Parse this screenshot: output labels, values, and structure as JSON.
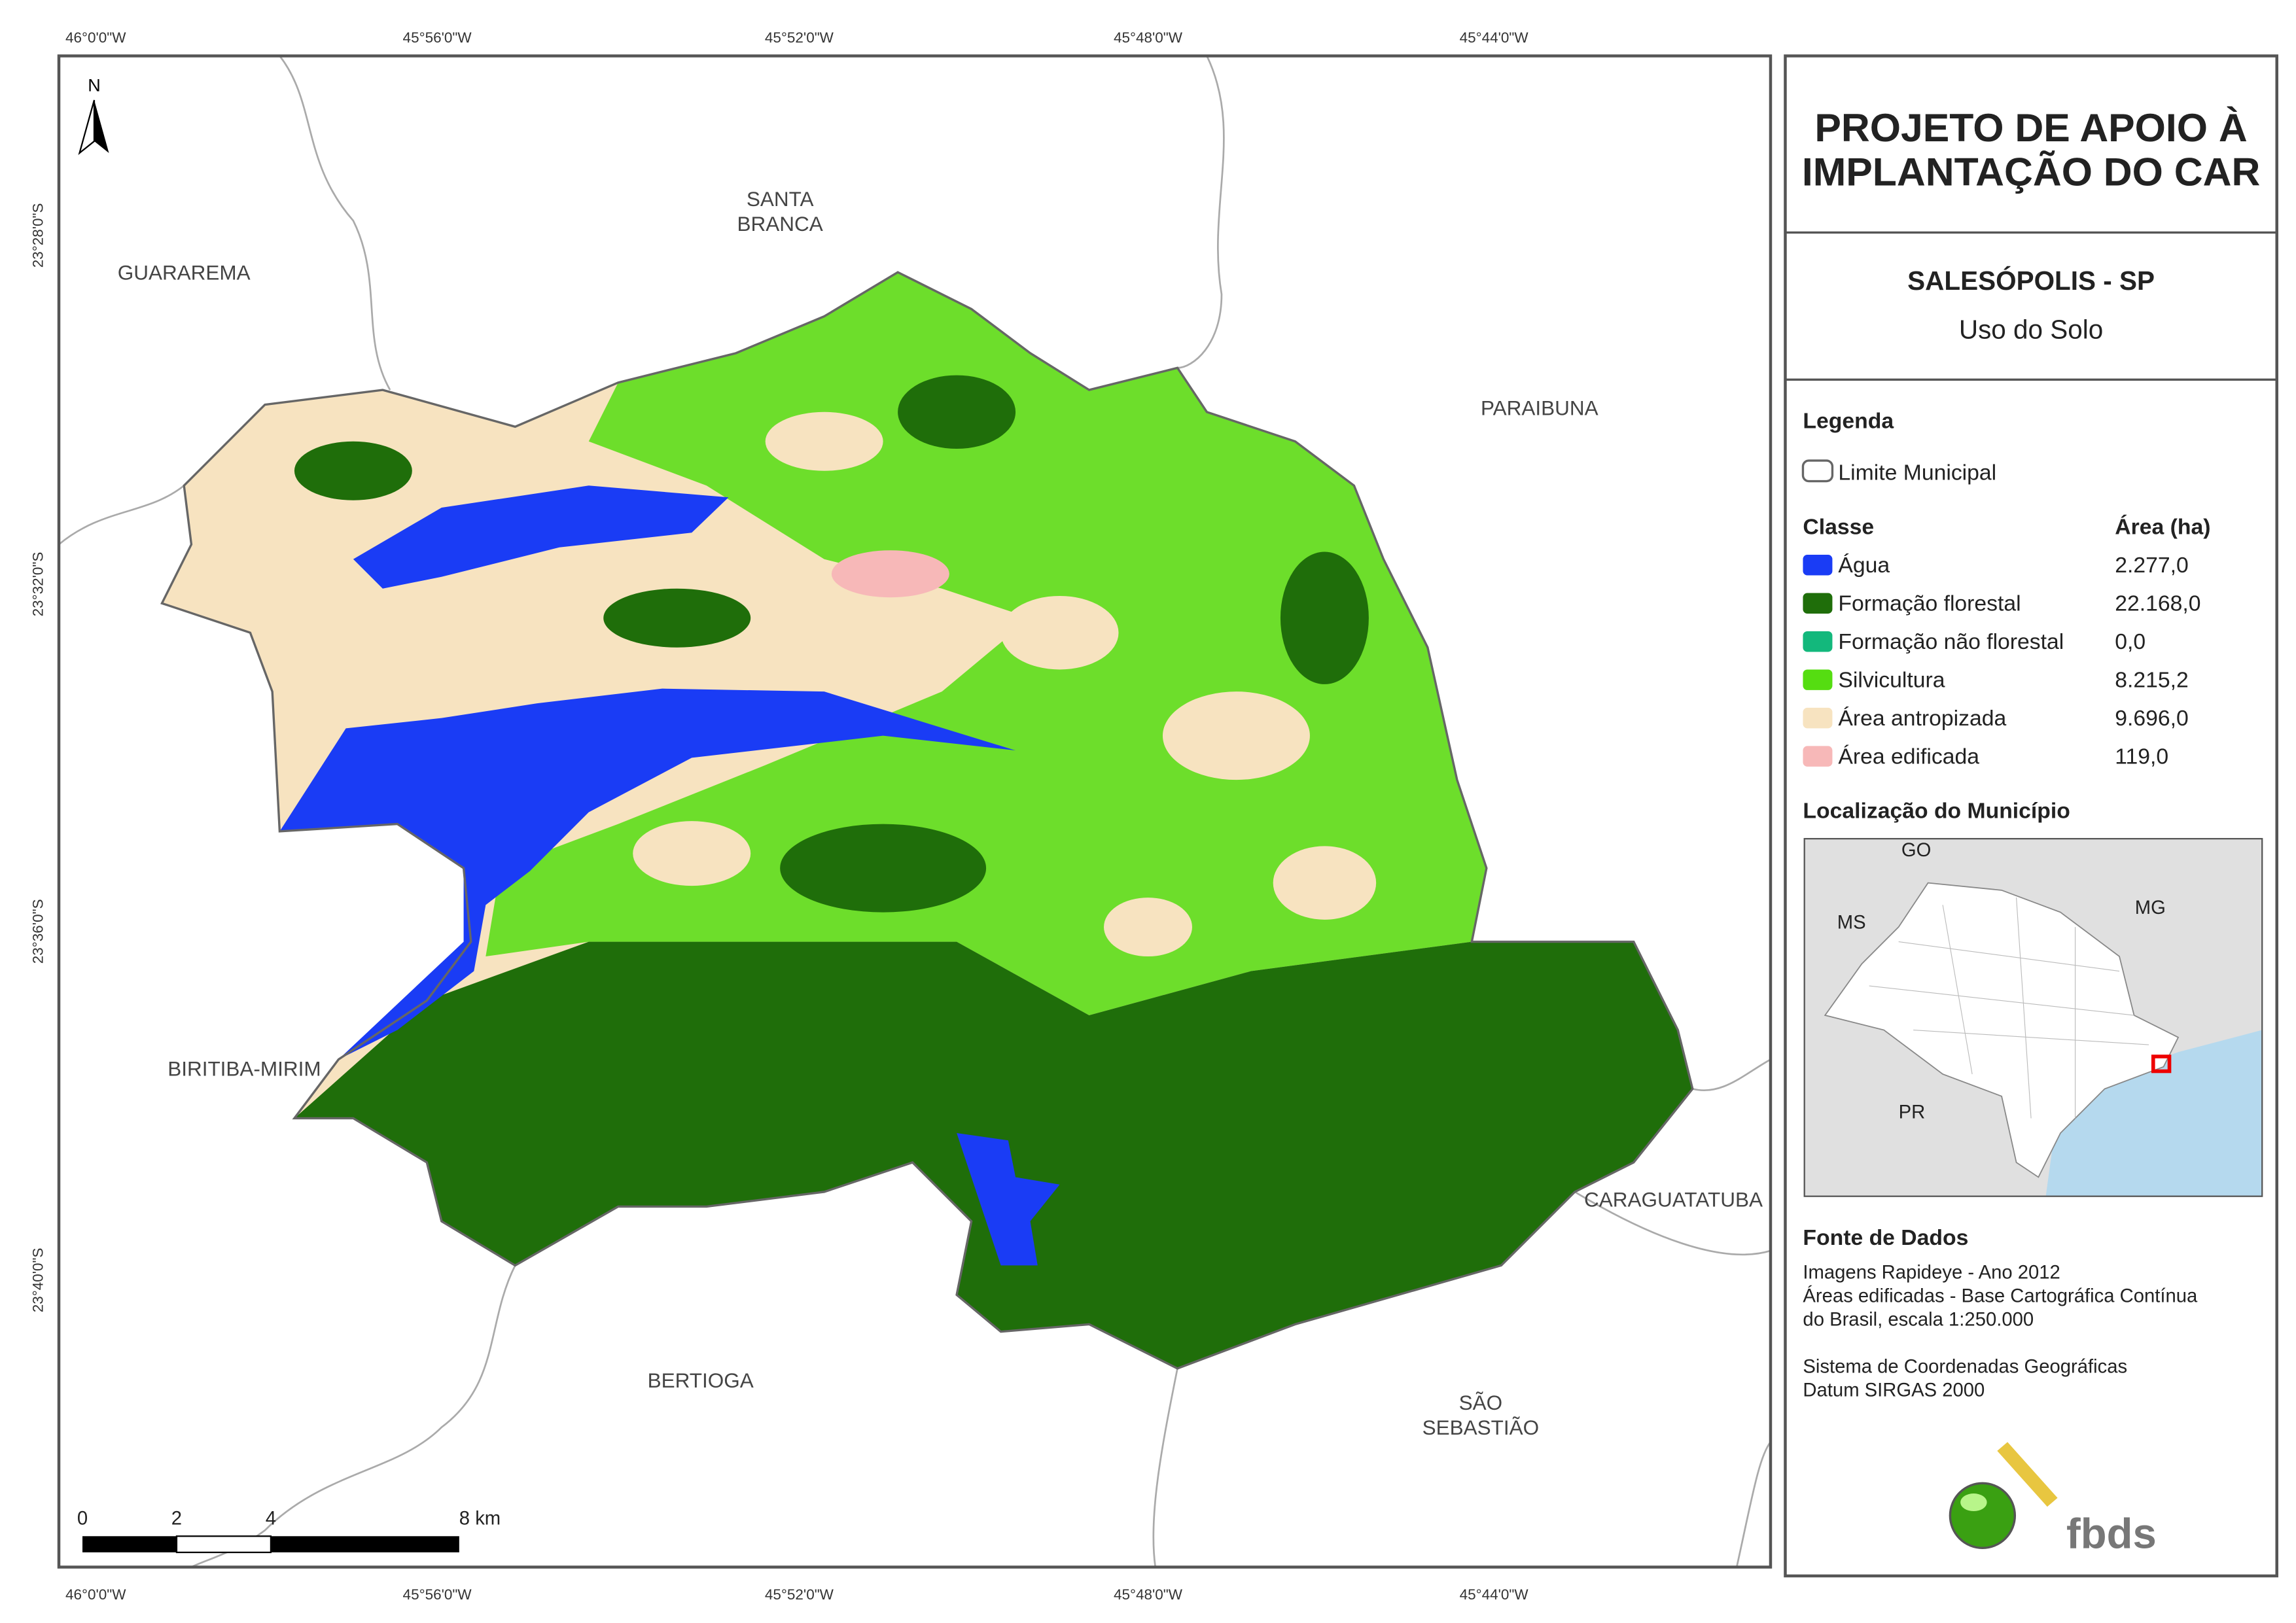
{
  "map": {
    "north": "N",
    "coordinates": {
      "top": [
        "46°0'0\"W",
        "45°56'0\"W",
        "45°52'0\"W",
        "45°48'0\"W",
        "45°44'0\"W"
      ],
      "bottom": [
        "46°0'0\"W",
        "45°56'0\"W",
        "45°52'0\"W",
        "45°48'0\"W",
        "45°44'0\"W"
      ],
      "left": [
        "23°28'0\"S",
        "23°32'0\"S",
        "23°36'0\"S",
        "23°40'0\"S"
      ]
    },
    "places": [
      {
        "lines": [
          "SANTA",
          "BRANCA"
        ]
      },
      {
        "lines": [
          "GUARAREMA"
        ]
      },
      {
        "lines": [
          "PARAIBUNA"
        ]
      },
      {
        "lines": [
          "BIRITIBA-MIRIM"
        ]
      },
      {
        "lines": [
          "CARAGUATATUBA"
        ]
      },
      {
        "lines": [
          "BERTIOGA"
        ]
      },
      {
        "lines": [
          "SÃO",
          "SEBASTIÃO"
        ]
      }
    ],
    "scale_bar": [
      "0",
      "2",
      "4",
      "8 km"
    ]
  },
  "panel": {
    "title_lines": [
      "PROJETO DE APOIO À",
      "IMPLANTAÇÃO DO CAR"
    ],
    "municipality": "SALESÓPOLIS - SP",
    "theme": "Uso do Solo",
    "legend": {
      "heading": "Legenda",
      "boundary": "Limite Municipal",
      "class_header": "Classe",
      "area_header": "Área (ha)",
      "classes": [
        {
          "name": "Água",
          "area": "2.277,0",
          "color": "#1a3cf5"
        },
        {
          "name": "Formação florestal",
          "area": "22.168,0",
          "color": "#1f6e0a"
        },
        {
          "name": "Formação não florestal",
          "area": "0,0",
          "color": "#13b87c"
        },
        {
          "name": "Silvicultura",
          "area": "8.215,2",
          "color": "#55dd11"
        },
        {
          "name": "Área antropizada",
          "area": "9.696,0",
          "color": "#f7e3c0"
        },
        {
          "name": "Área edificada",
          "area": "119,0",
          "color": "#f7b8b8"
        }
      ]
    },
    "location": {
      "heading": "Localização do Município",
      "labels": [
        "GO",
        "MS",
        "MG",
        "PR"
      ]
    },
    "sources": {
      "heading": "Fonte de Dados",
      "lines": [
        "Imagens Rapideye - Ano 2012",
        "Áreas edificadas - Base Cartográfica Contínua",
        "do Brasil, escala 1:250.000",
        "",
        "Sistema de Coordenadas Geográficas",
        "Datum SIRGAS 2000"
      ]
    },
    "logo": "fbds"
  }
}
